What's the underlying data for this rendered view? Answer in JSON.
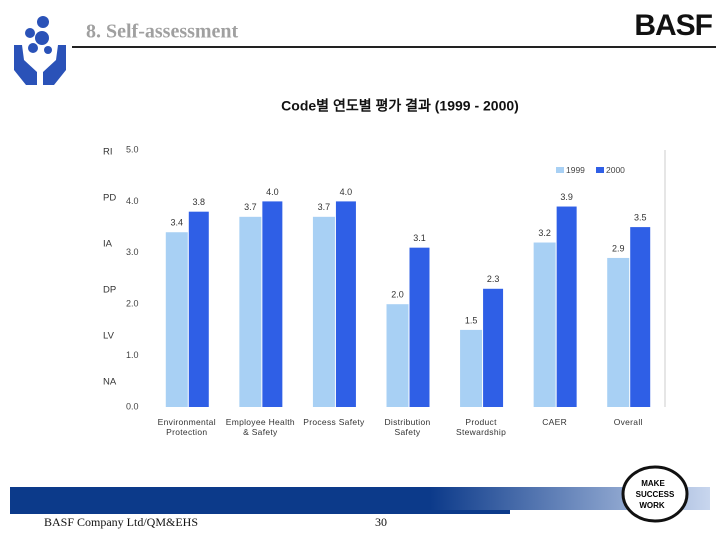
{
  "header": {
    "title": "8. Self-assessment",
    "logo": "BASF"
  },
  "chart_data": {
    "type": "bar",
    "title": "Code별 연도별 평가 결과 (1999 - 2000)",
    "categories": [
      "Environmental Protection",
      "Employee Health & Safety",
      "Process Safety",
      "Distribution Safety",
      "Product Stewardship",
      "CAER",
      "Overall"
    ],
    "series": [
      {
        "name": "1999",
        "color": "#a8d0f4",
        "values": [
          3.4,
          3.7,
          3.7,
          2.0,
          1.5,
          3.2,
          2.9
        ],
        "value_labels": [
          "3.4",
          "3.7",
          "3.7",
          "2.0",
          "1.5",
          "3.2",
          "2.9"
        ]
      },
      {
        "name": "2000",
        "color": "#2f5fe6",
        "values": [
          3.8,
          4.0,
          4.0,
          3.1,
          2.3,
          3.9,
          3.5
        ],
        "value_labels": [
          "3.8",
          "4.0",
          "4.0",
          "3.1",
          "2.3",
          "3.9",
          "3.5"
        ]
      }
    ],
    "ylim": [
      0,
      5
    ],
    "yticks": [
      {
        "value": 0,
        "label": "0.0"
      },
      {
        "value": 1,
        "label": "1.0"
      },
      {
        "value": 2,
        "label": "2.0"
      },
      {
        "value": 3,
        "label": "3.0"
      },
      {
        "value": 4,
        "label": "4.0"
      },
      {
        "value": 5,
        "label": "5.0"
      }
    ],
    "side_labels": [
      "RI",
      "PD",
      "IA",
      "DP",
      "LV",
      "NA"
    ],
    "legend": "top-right"
  },
  "badge": [
    "MAKE",
    "SUCCESS",
    "WORK"
  ],
  "footer": {
    "company": "BASF Company Ltd/QM&EHS",
    "page": "30"
  }
}
